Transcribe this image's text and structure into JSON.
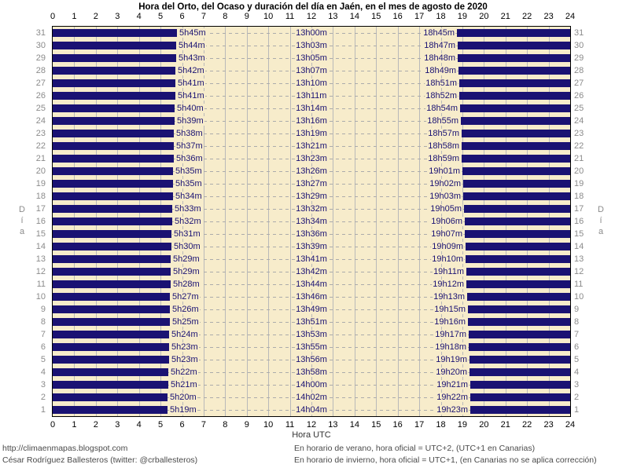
{
  "chart_data": {
    "type": "bar",
    "orientation": "horizontal",
    "title": "Hora del Orto, del Ocaso y duración del día en Jaén, en el mes de agosto de 2020",
    "xlabel": "Hora UTC",
    "ylabel": "Día",
    "xlim": [
      0,
      24
    ],
    "x_ticks": [
      0,
      1,
      2,
      3,
      4,
      5,
      6,
      7,
      8,
      9,
      10,
      11,
      12,
      13,
      14,
      15,
      16,
      17,
      18,
      19,
      20,
      21,
      22,
      23,
      24
    ],
    "grid": true,
    "days": [
      {
        "day": 31,
        "orto": "5h45m",
        "duracion": "13h00m",
        "ocaso": "18h45m"
      },
      {
        "day": 30,
        "orto": "5h44m",
        "duracion": "13h03m",
        "ocaso": "18h47m"
      },
      {
        "day": 29,
        "orto": "5h43m",
        "duracion": "13h05m",
        "ocaso": "18h48m"
      },
      {
        "day": 28,
        "orto": "5h42m",
        "duracion": "13h07m",
        "ocaso": "18h49m"
      },
      {
        "day": 27,
        "orto": "5h41m",
        "duracion": "13h10m",
        "ocaso": "18h51m"
      },
      {
        "day": 26,
        "orto": "5h41m",
        "duracion": "13h11m",
        "ocaso": "18h52m"
      },
      {
        "day": 25,
        "orto": "5h40m",
        "duracion": "13h14m",
        "ocaso": "18h54m"
      },
      {
        "day": 24,
        "orto": "5h39m",
        "duracion": "13h16m",
        "ocaso": "18h55m"
      },
      {
        "day": 23,
        "orto": "5h38m",
        "duracion": "13h19m",
        "ocaso": "18h57m"
      },
      {
        "day": 22,
        "orto": "5h37m",
        "duracion": "13h21m",
        "ocaso": "18h58m"
      },
      {
        "day": 21,
        "orto": "5h36m",
        "duracion": "13h23m",
        "ocaso": "18h59m"
      },
      {
        "day": 20,
        "orto": "5h35m",
        "duracion": "13h26m",
        "ocaso": "19h01m"
      },
      {
        "day": 19,
        "orto": "5h35m",
        "duracion": "13h27m",
        "ocaso": "19h02m"
      },
      {
        "day": 18,
        "orto": "5h34m",
        "duracion": "13h29m",
        "ocaso": "19h03m"
      },
      {
        "day": 17,
        "orto": "5h33m",
        "duracion": "13h32m",
        "ocaso": "19h05m"
      },
      {
        "day": 16,
        "orto": "5h32m",
        "duracion": "13h34m",
        "ocaso": "19h06m"
      },
      {
        "day": 15,
        "orto": "5h31m",
        "duracion": "13h36m",
        "ocaso": "19h07m"
      },
      {
        "day": 14,
        "orto": "5h30m",
        "duracion": "13h39m",
        "ocaso": "19h09m"
      },
      {
        "day": 13,
        "orto": "5h29m",
        "duracion": "13h41m",
        "ocaso": "19h10m"
      },
      {
        "day": 12,
        "orto": "5h29m",
        "duracion": "13h42m",
        "ocaso": "19h11m"
      },
      {
        "day": 11,
        "orto": "5h28m",
        "duracion": "13h44m",
        "ocaso": "19h12m"
      },
      {
        "day": 10,
        "orto": "5h27m",
        "duracion": "13h46m",
        "ocaso": "19h13m"
      },
      {
        "day": 9,
        "orto": "5h26m",
        "duracion": "13h49m",
        "ocaso": "19h15m"
      },
      {
        "day": 8,
        "orto": "5h25m",
        "duracion": "13h51m",
        "ocaso": "19h16m"
      },
      {
        "day": 7,
        "orto": "5h24m",
        "duracion": "13h53m",
        "ocaso": "19h17m"
      },
      {
        "day": 6,
        "orto": "5h23m",
        "duracion": "13h55m",
        "ocaso": "19h18m"
      },
      {
        "day": 5,
        "orto": "5h23m",
        "duracion": "13h56m",
        "ocaso": "19h19m"
      },
      {
        "day": 4,
        "orto": "5h22m",
        "duracion": "13h58m",
        "ocaso": "19h20m"
      },
      {
        "day": 3,
        "orto": "5h21m",
        "duracion": "14h00m",
        "ocaso": "19h21m"
      },
      {
        "day": 2,
        "orto": "5h20m",
        "duracion": "14h02m",
        "ocaso": "19h22m"
      },
      {
        "day": 1,
        "orto": "5h19m",
        "duracion": "14h04m",
        "ocaso": "19h23m"
      }
    ]
  },
  "footer": {
    "left": [
      "http://climaenmapas.blogspot.com",
      "César Rodríguez Ballesteros (twitter: @crballesteros)"
    ],
    "right": [
      "En horario de verano, hora oficial = UTC+2, (UTC+1 en Canarias)",
      "En horario de invierno, hora oficial = UTC+1, (en Canarias no se aplica corrección)"
    ]
  },
  "colors": {
    "night": "#1a1273",
    "day_bg": "#f7eccb",
    "grid": "#b9b9b9",
    "dash": "#ababab",
    "day_label": "#8b8b8b",
    "footer_text": "#4a4a4a"
  }
}
